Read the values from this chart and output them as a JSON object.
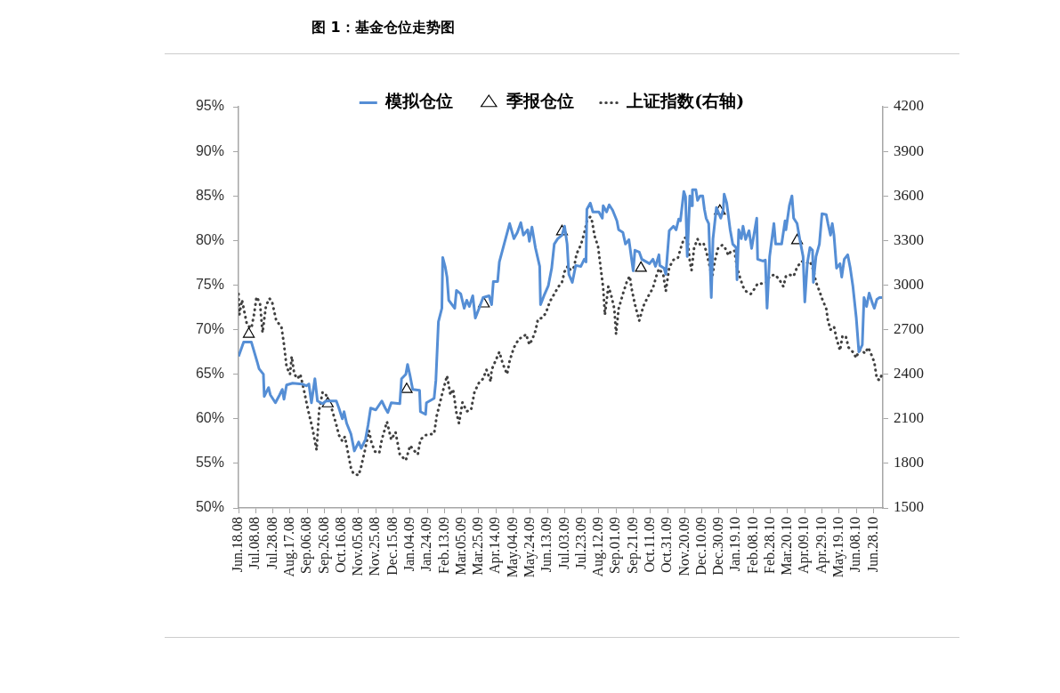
{
  "chart_data": {
    "type": "line",
    "title": "图 1：基金仓位走势图",
    "legend": "top",
    "grid": false,
    "xlim": [
      "2008-06-18",
      "2010-07-09"
    ],
    "xticks": [
      {
        "value": "2008-06-18",
        "label": "Jun.18.08"
      },
      {
        "value": "2008-07-08",
        "label": "Jul.08.08"
      },
      {
        "value": "2008-07-28",
        "label": "Jul.28.08"
      },
      {
        "value": "2008-08-17",
        "label": "Aug.17.08"
      },
      {
        "value": "2008-09-06",
        "label": "Sep.06.08"
      },
      {
        "value": "2008-09-26",
        "label": "Sep.26.08"
      },
      {
        "value": "2008-10-16",
        "label": "Oct.16.08"
      },
      {
        "value": "2008-11-05",
        "label": "Nov.05.08"
      },
      {
        "value": "2008-11-25",
        "label": "Nov.25.08"
      },
      {
        "value": "2008-12-15",
        "label": "Dec.15.08"
      },
      {
        "value": "2009-01-04",
        "label": "Jan.04.09"
      },
      {
        "value": "2009-01-24",
        "label": "Jan.24.09"
      },
      {
        "value": "2009-02-13",
        "label": "Feb.13.09"
      },
      {
        "value": "2009-03-05",
        "label": "Mar.05.09"
      },
      {
        "value": "2009-03-25",
        "label": "Mar.25.09"
      },
      {
        "value": "2009-04-14",
        "label": "Apr.14.09"
      },
      {
        "value": "2009-05-04",
        "label": "May.04.09"
      },
      {
        "value": "2009-05-24",
        "label": "May.24.09"
      },
      {
        "value": "2009-06-13",
        "label": "Jun.13.09"
      },
      {
        "value": "2009-07-03",
        "label": "Jul.03.09"
      },
      {
        "value": "2009-07-23",
        "label": "Jul.23.09"
      },
      {
        "value": "2009-08-12",
        "label": "Aug.12.09"
      },
      {
        "value": "2009-09-01",
        "label": "Sep.01.09"
      },
      {
        "value": "2009-09-21",
        "label": "Sep.21.09"
      },
      {
        "value": "2009-10-11",
        "label": "Oct.11.09"
      },
      {
        "value": "2009-10-31",
        "label": "Oct.31.09"
      },
      {
        "value": "2009-11-20",
        "label": "Nov.20.09"
      },
      {
        "value": "2009-12-10",
        "label": "Dec.10.09"
      },
      {
        "value": "2009-12-30",
        "label": "Dec.30.09"
      },
      {
        "value": "2010-01-19",
        "label": "Jan.19.10"
      },
      {
        "value": "2010-02-08",
        "label": "Feb.08.10"
      },
      {
        "value": "2010-02-28",
        "label": "Feb.28.10"
      },
      {
        "value": "2010-03-20",
        "label": "Mar.20.10"
      },
      {
        "value": "2010-04-09",
        "label": "Apr.09.10"
      },
      {
        "value": "2010-04-29",
        "label": "Apr.29.10"
      },
      {
        "value": "2010-05-19",
        "label": "May.19.10"
      },
      {
        "value": "2010-06-08",
        "label": "Jun.08.10"
      },
      {
        "value": "2010-06-28",
        "label": "Jun.28.10"
      }
    ],
    "ylim": [
      50,
      95
    ],
    "yticks": [
      {
        "value": 50,
        "label": "50%"
      },
      {
        "value": 55,
        "label": "55%"
      },
      {
        "value": 60,
        "label": "60%"
      },
      {
        "value": 65,
        "label": "65%"
      },
      {
        "value": 70,
        "label": "70%"
      },
      {
        "value": 75,
        "label": "75%"
      },
      {
        "value": 80,
        "label": "80%"
      },
      {
        "value": 85,
        "label": "85%"
      },
      {
        "value": 90,
        "label": "90%"
      },
      {
        "value": 95,
        "label": "95%"
      }
    ],
    "y2lim": [
      1500,
      4200
    ],
    "y2ticks": [
      1500,
      1800,
      2100,
      2400,
      2700,
      3000,
      3300,
      3600,
      3900,
      4200
    ],
    "series": [
      {
        "name": "模拟仓位",
        "type": "line",
        "color": "#558ed5",
        "x": [
          "2008-06-18",
          "2008-06-24",
          "2008-07-03",
          "2008-07-10",
          "2008-07-12",
          "2008-07-17",
          "2008-07-18",
          "2008-07-23",
          "2008-07-25",
          "2008-07-31",
          "2008-08-05",
          "2008-08-08",
          "2008-08-10",
          "2008-08-13",
          "2008-08-20",
          "2008-08-31",
          "2008-09-05",
          "2008-09-08",
          "2008-09-11",
          "2008-09-15",
          "2008-09-18",
          "2008-09-24",
          "2008-09-28",
          "2008-10-10",
          "2008-10-13",
          "2008-10-17",
          "2008-10-19",
          "2008-10-22",
          "2008-10-27",
          "2008-10-31",
          "2008-11-05",
          "2008-11-08",
          "2008-11-13",
          "2008-11-16",
          "2008-11-19",
          "2008-11-25",
          "2008-12-02",
          "2008-12-06",
          "2008-12-09",
          "2008-12-13",
          "2008-12-23",
          "2008-12-25",
          "2008-12-30",
          "2009-01-01",
          "2009-01-04",
          "2009-01-07",
          "2009-01-15",
          "2009-01-16",
          "2009-01-22",
          "2009-01-23",
          "2009-02-01",
          "2009-02-03",
          "2009-02-06",
          "2009-02-10",
          "2009-02-11",
          "2009-02-14",
          "2009-02-16",
          "2009-02-18",
          "2009-02-25",
          "2009-02-27",
          "2009-03-04",
          "2009-03-08",
          "2009-03-11",
          "2009-03-14",
          "2009-03-18",
          "2009-03-21",
          "2009-03-25",
          "2009-03-30",
          "2009-04-06",
          "2009-04-09",
          "2009-04-11",
          "2009-04-16",
          "2009-04-18",
          "2009-04-23",
          "2009-04-30",
          "2009-05-05",
          "2009-05-09",
          "2009-05-13",
          "2009-05-16",
          "2009-05-21",
          "2009-05-23",
          "2009-05-26",
          "2009-05-30",
          "2009-06-04",
          "2009-06-05",
          "2009-06-09",
          "2009-06-14",
          "2009-06-18",
          "2009-06-21",
          "2009-06-25",
          "2009-06-30",
          "2009-07-03",
          "2009-07-06",
          "2009-07-08",
          "2009-07-12",
          "2009-07-16",
          "2009-07-22",
          "2009-07-26",
          "2009-07-28",
          "2009-07-29",
          "2009-08-02",
          "2009-08-05",
          "2009-08-12",
          "2009-08-16",
          "2009-08-17",
          "2009-08-21",
          "2009-08-24",
          "2009-08-28",
          "2009-09-02",
          "2009-09-04",
          "2009-09-09",
          "2009-09-12",
          "2009-09-16",
          "2009-09-21",
          "2009-09-23",
          "2009-09-28",
          "2009-10-01",
          "2009-10-10",
          "2009-10-14",
          "2009-10-17",
          "2009-10-21",
          "2009-10-22",
          "2009-10-27",
          "2009-10-29",
          "2009-11-02",
          "2009-11-07",
          "2009-11-10",
          "2009-11-13",
          "2009-11-15",
          "2009-11-19",
          "2009-11-21",
          "2009-11-23",
          "2009-11-26",
          "2009-11-28",
          "2009-11-29",
          "2009-12-03",
          "2009-12-05",
          "2009-12-08",
          "2009-12-11",
          "2009-12-13",
          "2009-12-15",
          "2009-12-18",
          "2009-12-21",
          "2009-12-23",
          "2009-12-27",
          "2010-01-01",
          "2010-01-04",
          "2010-01-05",
          "2010-01-08",
          "2010-01-12",
          "2010-01-15",
          "2010-01-19",
          "2010-01-20",
          "2010-01-22",
          "2010-01-25",
          "2010-01-27",
          "2010-01-30",
          "2010-02-03",
          "2010-02-06",
          "2010-02-12",
          "2010-02-13",
          "2010-02-19",
          "2010-02-22",
          "2010-02-24",
          "2010-02-27",
          "2010-03-04",
          "2010-03-06",
          "2010-03-13",
          "2010-03-17",
          "2010-03-18",
          "2010-03-22",
          "2010-03-25",
          "2010-03-27",
          "2010-03-31",
          "2010-04-03",
          "2010-04-07",
          "2010-04-09",
          "2010-04-12",
          "2010-04-15",
          "2010-04-18",
          "2010-04-19",
          "2010-04-22",
          "2010-04-26",
          "2010-04-29",
          "2010-05-04",
          "2010-05-06",
          "2010-05-09",
          "2010-05-11",
          "2010-05-13",
          "2010-05-16",
          "2010-05-20",
          "2010-05-22",
          "2010-05-25",
          "2010-05-29",
          "2010-06-01",
          "2010-06-04",
          "2010-06-08",
          "2010-06-11",
          "2010-06-15",
          "2010-06-17",
          "2010-06-20",
          "2010-06-23",
          "2010-06-27",
          "2010-06-29",
          "2010-07-02",
          "2010-07-05",
          "2010-07-08"
        ],
        "values": [
          67.0,
          68.6,
          68.6,
          66.3,
          65.6,
          65.0,
          62.5,
          63.5,
          62.7,
          61.8,
          62.7,
          63.3,
          62.2,
          63.8,
          64.0,
          63.9,
          63.7,
          63.9,
          61.8,
          64.5,
          62.0,
          61.7,
          62.0,
          62.0,
          61.2,
          60.0,
          60.8,
          59.5,
          58.3,
          56.4,
          57.4,
          56.7,
          57.7,
          59.3,
          61.2,
          61.0,
          62.0,
          61.2,
          60.7,
          61.8,
          61.7,
          64.5,
          65.0,
          66.1,
          64.8,
          63.3,
          63.2,
          60.8,
          60.5,
          61.8,
          62.3,
          64.3,
          70.9,
          72.4,
          78.1,
          77.0,
          75.9,
          73.3,
          72.4,
          74.4,
          74.0,
          72.4,
          73.3,
          72.6,
          73.8,
          71.3,
          72.3,
          73.6,
          73.8,
          72.8,
          75.4,
          75.4,
          77.6,
          79.4,
          81.9,
          80.2,
          80.9,
          82.0,
          80.6,
          81.2,
          79.9,
          81.5,
          79.2,
          77.1,
          72.8,
          73.8,
          74.9,
          76.9,
          79.6,
          80.2,
          80.6,
          81.6,
          79.6,
          76.2,
          75.3,
          77.2,
          77.1,
          77.9,
          77.6,
          83.5,
          84.2,
          83.2,
          83.2,
          82.5,
          83.9,
          83.2,
          84.0,
          83.4,
          82.2,
          81.2,
          80.9,
          79.6,
          80.1,
          76.6,
          78.9,
          78.7,
          77.9,
          77.4,
          77.9,
          77.1,
          78.4,
          77.2,
          76.9,
          76.2,
          81.1,
          81.6,
          81.2,
          82.4,
          82.2,
          85.5,
          84.9,
          78.2,
          85.0,
          83.9,
          85.7,
          85.7,
          84.5,
          85.0,
          85.0,
          83.5,
          82.5,
          81.9,
          73.6,
          80.2,
          83.7,
          82.5,
          83.5,
          85.2,
          84.2,
          81.2,
          79.6,
          79.2,
          75.6,
          81.2,
          80.2,
          81.6,
          80.1,
          81.1,
          79.1,
          82.5,
          77.9,
          77.7,
          77.8,
          72.4,
          78.2,
          81.9,
          79.6,
          79.6,
          82.2,
          81.2,
          83.9,
          85.0,
          82.5,
          81.9,
          80.2,
          78.2,
          73.1,
          77.5,
          79.2,
          78.9,
          75.3,
          78.2,
          79.6,
          83.0,
          82.9,
          81.9,
          80.6,
          81.9,
          80.6,
          76.9,
          77.4,
          75.9,
          77.9,
          78.4,
          76.9,
          74.9,
          71.3,
          67.5,
          68.3,
          73.6,
          72.6,
          74.1,
          72.9,
          72.4,
          73.4,
          73.6,
          73.6
        ]
      },
      {
        "name": "季报仓位",
        "type": "scatter",
        "color": "#000000",
        "marker": "triangle",
        "x": [
          "2008-06-30",
          "2008-09-30",
          "2008-12-31",
          "2009-03-31",
          "2009-06-30",
          "2009-09-30",
          "2009-12-31",
          "2010-03-31"
        ],
        "values": [
          69.5,
          61.7,
          63.3,
          72.9,
          81.0,
          76.9,
          83.3,
          80.0
        ]
      },
      {
        "name": "上证指数(右轴)",
        "type": "line",
        "color": "#404040",
        "line_style": "dotted",
        "axis": "y2",
        "x": [
          "2008-06-18",
          "2008-06-19",
          "2008-06-22",
          "2008-06-28",
          "2008-07-03",
          "2008-07-06",
          "2008-07-09",
          "2008-07-13",
          "2008-07-16",
          "2008-07-20",
          "2008-07-24",
          "2008-07-27",
          "2008-08-01",
          "2008-08-07",
          "2008-08-10",
          "2008-08-13",
          "2008-08-17",
          "2008-08-19",
          "2008-08-22",
          "2008-08-26",
          "2008-08-29",
          "2008-09-02",
          "2008-09-07",
          "2008-09-12",
          "2008-09-17",
          "2008-09-20",
          "2008-09-24",
          "2008-09-28",
          "2008-10-03",
          "2008-10-10",
          "2008-10-13",
          "2008-10-17",
          "2008-10-20",
          "2008-10-24",
          "2008-10-27",
          "2008-10-30",
          "2008-11-05",
          "2008-11-08",
          "2008-11-12",
          "2008-11-17",
          "2008-11-20",
          "2008-11-24",
          "2008-11-29",
          "2008-12-02",
          "2008-12-08",
          "2008-12-13",
          "2008-12-18",
          "2008-12-23",
          "2008-12-30",
          "2009-01-04",
          "2009-01-08",
          "2009-01-13",
          "2009-01-16",
          "2009-01-22",
          "2009-02-01",
          "2009-02-04",
          "2009-02-10",
          "2009-02-16",
          "2009-02-20",
          "2009-02-23",
          "2009-02-27",
          "2009-03-02",
          "2009-03-06",
          "2009-03-11",
          "2009-03-16",
          "2009-03-20",
          "2009-03-25",
          "2009-03-30",
          "2009-04-03",
          "2009-04-08",
          "2009-04-09",
          "2009-04-15",
          "2009-04-18",
          "2009-04-22",
          "2009-04-27",
          "2009-04-30",
          "2009-05-05",
          "2009-05-11",
          "2009-05-16",
          "2009-05-19",
          "2009-05-23",
          "2009-05-26",
          "2009-05-30",
          "2009-06-02",
          "2009-06-07",
          "2009-06-11",
          "2009-06-16",
          "2009-06-21",
          "2009-06-26",
          "2009-06-30",
          "2009-07-03",
          "2009-07-07",
          "2009-07-10",
          "2009-07-14",
          "2009-07-17",
          "2009-07-22",
          "2009-07-26",
          "2009-07-29",
          "2009-08-02",
          "2009-08-04",
          "2009-08-07",
          "2009-08-11",
          "2009-08-14",
          "2009-08-17",
          "2009-08-19",
          "2009-08-23",
          "2009-08-26",
          "2009-08-30",
          "2009-09-01",
          "2009-09-04",
          "2009-09-09",
          "2009-09-14",
          "2009-09-17",
          "2009-09-19",
          "2009-09-23",
          "2009-09-28",
          "2009-10-03",
          "2009-10-08",
          "2009-10-14",
          "2009-10-18",
          "2009-10-21",
          "2009-10-26",
          "2009-10-29",
          "2009-11-02",
          "2009-11-07",
          "2009-11-12",
          "2009-11-16",
          "2009-11-19",
          "2009-11-23",
          "2009-11-26",
          "2009-11-28",
          "2009-12-01",
          "2009-12-05",
          "2009-12-08",
          "2009-12-12",
          "2009-12-15",
          "2009-12-19",
          "2009-12-22",
          "2009-12-25",
          "2009-12-29",
          "2010-01-03",
          "2010-01-06",
          "2010-01-10",
          "2010-01-13",
          "2010-01-17",
          "2010-01-20",
          "2010-01-24",
          "2010-01-27",
          "2010-01-30",
          "2010-02-05",
          "2010-02-10",
          "2010-02-13",
          "2010-02-19",
          "2010-02-24",
          "2010-02-27",
          "2010-03-05",
          "2010-03-10",
          "2010-03-15",
          "2010-03-18",
          "2010-03-22",
          "2010-03-27",
          "2010-03-31",
          "2010-04-05",
          "2010-04-12",
          "2010-04-15",
          "2010-04-19",
          "2010-04-22",
          "2010-04-26",
          "2010-04-29",
          "2010-05-04",
          "2010-05-06",
          "2010-05-09",
          "2010-05-13",
          "2010-05-16",
          "2010-05-20",
          "2010-05-23",
          "2010-05-27",
          "2010-05-30",
          "2010-06-04",
          "2010-06-08",
          "2010-06-11",
          "2010-06-15",
          "2010-06-18",
          "2010-06-22",
          "2010-06-25",
          "2010-06-29",
          "2010-07-02",
          "2010-07-05",
          "2010-07-08"
        ],
        "values": [
          2940,
          2800,
          2900,
          2730,
          2710,
          2800,
          2920,
          2880,
          2680,
          2860,
          2910,
          2890,
          2760,
          2720,
          2600,
          2450,
          2400,
          2520,
          2400,
          2370,
          2400,
          2300,
          2160,
          2040,
          1890,
          2160,
          2280,
          2260,
          2200,
          2060,
          1990,
          1950,
          1980,
          1860,
          1770,
          1730,
          1720,
          1780,
          1880,
          2020,
          1940,
          1880,
          1870,
          1960,
          2080,
          1960,
          2010,
          1860,
          1820,
          1920,
          1890,
          1860,
          1960,
          1990,
          2000,
          2120,
          2260,
          2390,
          2260,
          2300,
          2140,
          2070,
          2210,
          2150,
          2160,
          2280,
          2340,
          2370,
          2430,
          2350,
          2430,
          2510,
          2550,
          2470,
          2400,
          2490,
          2580,
          2640,
          2650,
          2670,
          2600,
          2630,
          2690,
          2770,
          2780,
          2810,
          2890,
          2940,
          2990,
          3020,
          3090,
          3130,
          3100,
          3120,
          3210,
          3270,
          3350,
          3430,
          3460,
          3430,
          3330,
          3260,
          3120,
          2980,
          2800,
          2990,
          2940,
          2840,
          2670,
          2840,
          2940,
          3030,
          3060,
          2980,
          2870,
          2760,
          2860,
          2920,
          2980,
          3060,
          3110,
          3070,
          2960,
          3120,
          3170,
          3180,
          3260,
          3310,
          3330,
          3160,
          3100,
          3250,
          3310,
          3270,
          3280,
          3230,
          3130,
          3050,
          3160,
          3250,
          3270,
          3250,
          3200,
          3230,
          3230,
          3120,
          3040,
          2990,
          2960,
          2940,
          2980,
          3010,
          3010,
          3020,
          3060,
          3070,
          3040,
          2990,
          3060,
          3070,
          3060,
          3120,
          3160,
          3150,
          3160,
          3100,
          3020,
          2960,
          2910,
          2840,
          2760,
          2700,
          2720,
          2640,
          2560,
          2660,
          2650,
          2580,
          2550,
          2510,
          2560,
          2560,
          2540,
          2580,
          2540,
          2480,
          2370,
          2360,
          2400
        ]
      }
    ]
  }
}
